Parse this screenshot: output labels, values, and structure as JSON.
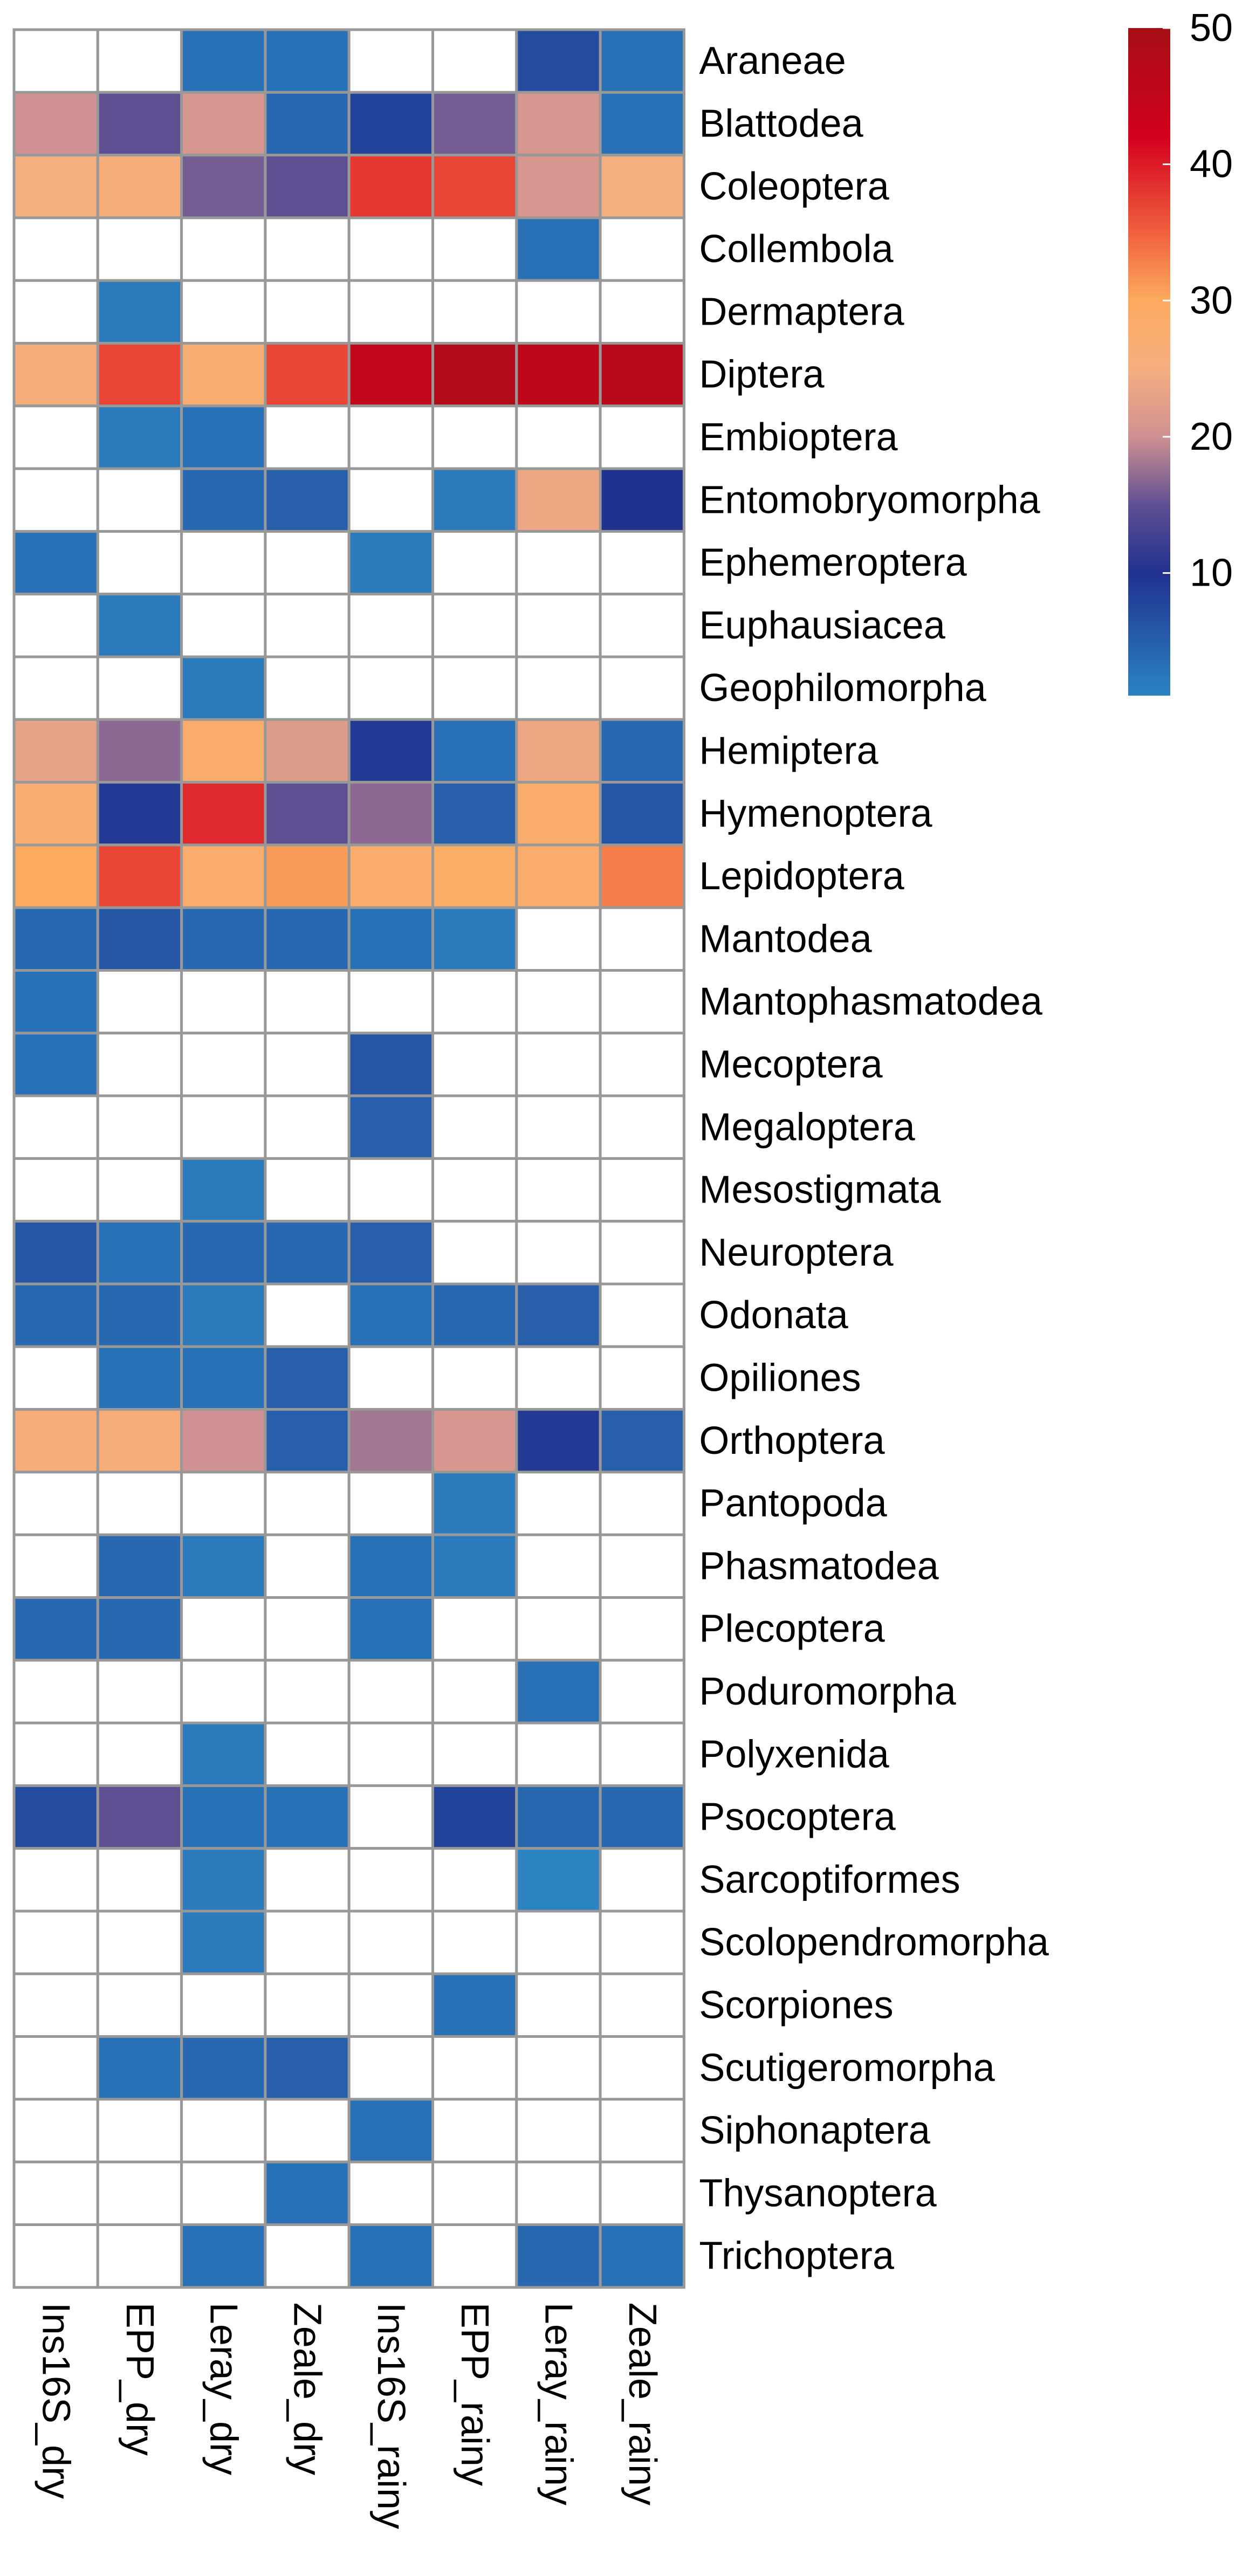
{
  "chart_data": {
    "type": "heatmap",
    "title": "",
    "xlabel": "",
    "ylabel": "",
    "columns": [
      "Ins16S_dry",
      "EPP_dry",
      "Leray_dry",
      "Zeale_dry",
      "Ins16S_rainy",
      "EPP_rainy",
      "Leray_rainy",
      "Zeale_rainy"
    ],
    "rows": [
      "Araneae",
      "Blattodea",
      "Coleoptera",
      "Collembola",
      "Dermaptera",
      "Diptera",
      "Embioptera",
      "Entomobryomorpha",
      "Ephemeroptera",
      "Euphausiacea",
      "Geophilomorpha",
      "Hemiptera",
      "Hymenoptera",
      "Lepidoptera",
      "Mantodea",
      "Mantophasmatodea",
      "Mecoptera",
      "Megaloptera",
      "Mesostigmata",
      "Neuroptera",
      "Odonata",
      "Opiliones",
      "Orthoptera",
      "Pantopoda",
      "Phasmatodea",
      "Plecoptera",
      "Poduromorpha",
      "Polyxenida",
      "Psocoptera",
      "Sarcoptiformes",
      "Scolopendromorpha",
      "Scorpiones",
      "Scutigeromorpha",
      "Siphonaptera",
      "Thysanoptera",
      "Trichoptera"
    ],
    "values": [
      [
        null,
        null,
        3,
        3,
        null,
        null,
        7,
        3
      ],
      [
        20,
        15,
        21,
        4,
        8,
        16,
        21,
        3
      ],
      [
        25,
        26,
        16,
        15,
        38,
        37,
        21,
        25
      ],
      [
        null,
        null,
        null,
        null,
        null,
        null,
        3,
        null
      ],
      [
        null,
        2,
        null,
        null,
        null,
        null,
        null,
        null
      ],
      [
        26,
        37,
        27,
        37,
        45,
        48,
        46,
        47
      ],
      [
        null,
        2,
        3,
        null,
        null,
        null,
        null,
        null
      ],
      [
        null,
        null,
        4,
        5,
        null,
        2,
        24,
        10
      ],
      [
        3,
        null,
        null,
        null,
        2,
        null,
        null,
        null
      ],
      [
        null,
        2,
        null,
        null,
        null,
        null,
        null,
        null
      ],
      [
        null,
        null,
        2,
        null,
        null,
        null,
        null,
        null
      ],
      [
        23,
        17,
        28,
        22,
        9,
        3,
        24,
        4
      ],
      [
        27,
        9,
        39,
        15,
        17,
        5,
        28,
        6
      ],
      [
        30,
        37,
        28,
        31,
        28,
        29,
        28,
        33
      ],
      [
        4,
        6,
        4,
        4,
        3,
        2,
        null,
        null
      ],
      [
        3,
        null,
        null,
        null,
        null,
        null,
        null,
        null
      ],
      [
        3,
        null,
        null,
        null,
        6,
        null,
        null,
        null
      ],
      [
        null,
        null,
        null,
        null,
        5,
        null,
        null,
        null
      ],
      [
        null,
        null,
        2,
        null,
        null,
        null,
        null,
        null
      ],
      [
        6,
        3,
        4,
        4,
        5,
        null,
        null,
        null
      ],
      [
        4,
        4,
        2,
        null,
        3,
        4,
        5,
        null
      ],
      [
        null,
        3,
        3,
        5,
        null,
        null,
        null,
        null
      ],
      [
        26,
        26,
        20,
        5,
        18,
        21,
        9,
        5
      ],
      [
        null,
        null,
        null,
        null,
        null,
        2,
        null,
        null
      ],
      [
        null,
        4,
        2,
        null,
        3,
        2,
        null,
        null
      ],
      [
        4,
        4,
        null,
        null,
        3,
        null,
        null,
        null
      ],
      [
        null,
        null,
        null,
        null,
        null,
        null,
        3,
        null
      ],
      [
        null,
        null,
        2,
        null,
        null,
        null,
        null,
        null
      ],
      [
        7,
        15,
        3,
        3,
        null,
        8,
        4,
        4
      ],
      [
        null,
        null,
        2,
        null,
        null,
        null,
        1,
        null
      ],
      [
        null,
        null,
        2,
        null,
        null,
        null,
        null,
        null
      ],
      [
        null,
        null,
        null,
        null,
        null,
        3,
        null,
        null
      ],
      [
        null,
        3,
        4,
        5,
        null,
        null,
        null,
        null
      ],
      [
        null,
        null,
        null,
        null,
        3,
        null,
        null,
        null
      ],
      [
        null,
        null,
        null,
        3,
        null,
        null,
        null,
        null
      ],
      [
        null,
        null,
        3,
        null,
        3,
        null,
        4,
        3
      ]
    ],
    "colorbar": {
      "min": 1,
      "max": 50,
      "ticks": [
        10,
        20,
        30,
        40,
        50
      ],
      "stops": [
        {
          "value": 1,
          "color": "#2b83c2"
        },
        {
          "value": 10,
          "color": "#21318e"
        },
        {
          "value": 15,
          "color": "#5e4f92"
        },
        {
          "value": 20,
          "color": "#cf9191"
        },
        {
          "value": 25,
          "color": "#f5ae80"
        },
        {
          "value": 30,
          "color": "#fcab5e"
        },
        {
          "value": 35,
          "color": "#f0603e"
        },
        {
          "value": 42,
          "color": "#d4001e"
        },
        {
          "value": 50,
          "color": "#a50f15"
        }
      ]
    },
    "empty_color": "#ffffff",
    "grid_color": "#989898",
    "grid": true,
    "legend": "top-right"
  }
}
